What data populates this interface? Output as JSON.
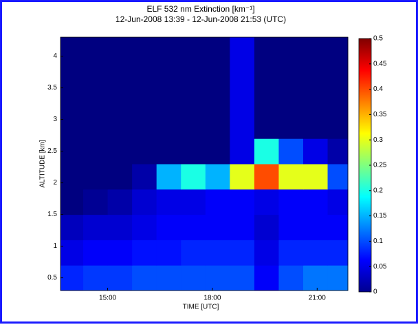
{
  "chart_data": {
    "type": "heatmap",
    "title": "ELF 532 nm Extinction [km⁻¹]",
    "subtitle": "12-Jun-2008 13:39 - 12-Jun-2008 21:53 (UTC)",
    "x_label": "TIME [UTC]",
    "y_label": "ALTITUDE [km]",
    "xlim": [
      13.65,
      21.88
    ],
    "xticks": [
      {
        "value": 15,
        "label": "15:00"
      },
      {
        "value": 18,
        "label": "18:00"
      },
      {
        "value": 21,
        "label": "21:00"
      }
    ],
    "ylim": [
      0.3,
      4.3
    ],
    "yticks": [
      0.5,
      1,
      1.5,
      2,
      2.5,
      3,
      3.5,
      4
    ],
    "x_bins": [
      13.65,
      14.3,
      15,
      15.7,
      16.4,
      17.1,
      17.8,
      18.5,
      19.2,
      19.9,
      20.6,
      21.3,
      21.88
    ],
    "y_bins": [
      0.3,
      0.7,
      1.1,
      1.5,
      1.9,
      2.3,
      2.7,
      3.1,
      3.5,
      3.9,
      4.3
    ],
    "z": [
      [
        0.08,
        0.09,
        0.09,
        0.1,
        0.1,
        0.1,
        0.1,
        0.1,
        0.06,
        0.1,
        0.12,
        0.12
      ],
      [
        0.05,
        0.06,
        0.06,
        0.07,
        0.07,
        0.08,
        0.08,
        0.08,
        0.05,
        0.08,
        0.08,
        0.08
      ],
      [
        0.03,
        0.04,
        0.04,
        0.05,
        0.06,
        0.06,
        0.06,
        0.06,
        0.04,
        0.06,
        0.06,
        0.06
      ],
      [
        0,
        0.01,
        0.02,
        0.04,
        0.05,
        0.05,
        0.06,
        0.06,
        0.05,
        0.06,
        0.06,
        0.05
      ],
      [
        0,
        0,
        0,
        0.02,
        0.15,
        0.2,
        0.15,
        0.3,
        0.4,
        0.3,
        0.3,
        0.1
      ],
      [
        0,
        0,
        0,
        0,
        0,
        0,
        0,
        0.05,
        0.2,
        0.1,
        0.05,
        0.02
      ],
      [
        0,
        0,
        0,
        0,
        0,
        0,
        0,
        0.05,
        0,
        0,
        0,
        0
      ],
      [
        0,
        0,
        0,
        0,
        0,
        0,
        0,
        0.05,
        0,
        0,
        0,
        0
      ],
      [
        0,
        0,
        0,
        0,
        0,
        0,
        0,
        0.05,
        0,
        0,
        0,
        0
      ],
      [
        0,
        0,
        0,
        0,
        0,
        0,
        0,
        0.05,
        0,
        0,
        0,
        0
      ]
    ],
    "colormap": "jet",
    "zlim": [
      0,
      0.5
    ],
    "zticks": [
      0,
      0.05,
      0.1,
      0.15,
      0.2,
      0.25,
      0.3,
      0.35,
      0.4,
      0.45,
      0.5
    ]
  }
}
